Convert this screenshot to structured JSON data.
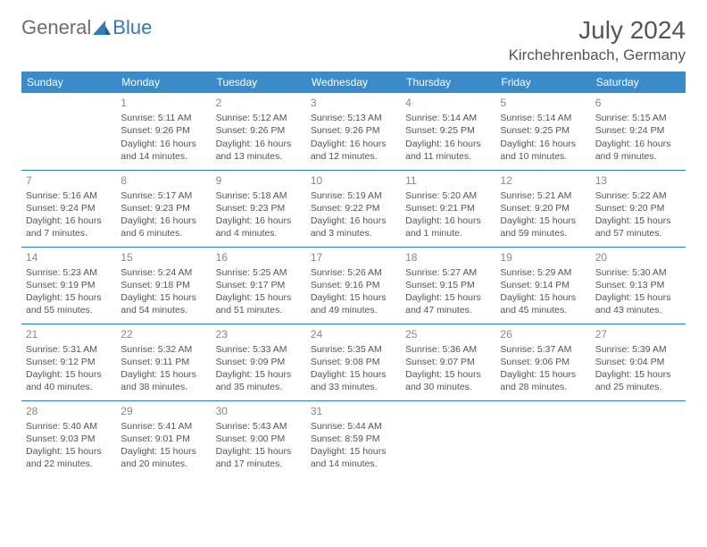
{
  "brand": {
    "part1": "General",
    "part2": "Blue"
  },
  "title": "July 2024",
  "location": "Kirchehrenbach, Germany",
  "colors": {
    "header_bg": "#3b8bc9",
    "header_text": "#ffffff",
    "cell_border": "#2f7ac0",
    "body_text": "#555555",
    "daynum": "#888888",
    "brand_gray": "#6e6e6e",
    "brand_blue": "#2f7ac0",
    "background": "#ffffff"
  },
  "typography": {
    "title_fontsize": 28,
    "location_fontsize": 17,
    "weekday_fontsize": 12,
    "cell_fontsize": 10.5,
    "daynum_fontsize": 12
  },
  "weekdays": [
    "Sunday",
    "Monday",
    "Tuesday",
    "Wednesday",
    "Thursday",
    "Friday",
    "Saturday"
  ],
  "weeks": [
    [
      null,
      {
        "n": "1",
        "sr": "Sunrise: 5:11 AM",
        "ss": "Sunset: 9:26 PM",
        "dl": "Daylight: 16 hours and 14 minutes."
      },
      {
        "n": "2",
        "sr": "Sunrise: 5:12 AM",
        "ss": "Sunset: 9:26 PM",
        "dl": "Daylight: 16 hours and 13 minutes."
      },
      {
        "n": "3",
        "sr": "Sunrise: 5:13 AM",
        "ss": "Sunset: 9:26 PM",
        "dl": "Daylight: 16 hours and 12 minutes."
      },
      {
        "n": "4",
        "sr": "Sunrise: 5:14 AM",
        "ss": "Sunset: 9:25 PM",
        "dl": "Daylight: 16 hours and 11 minutes."
      },
      {
        "n": "5",
        "sr": "Sunrise: 5:14 AM",
        "ss": "Sunset: 9:25 PM",
        "dl": "Daylight: 16 hours and 10 minutes."
      },
      {
        "n": "6",
        "sr": "Sunrise: 5:15 AM",
        "ss": "Sunset: 9:24 PM",
        "dl": "Daylight: 16 hours and 9 minutes."
      }
    ],
    [
      {
        "n": "7",
        "sr": "Sunrise: 5:16 AM",
        "ss": "Sunset: 9:24 PM",
        "dl": "Daylight: 16 hours and 7 minutes."
      },
      {
        "n": "8",
        "sr": "Sunrise: 5:17 AM",
        "ss": "Sunset: 9:23 PM",
        "dl": "Daylight: 16 hours and 6 minutes."
      },
      {
        "n": "9",
        "sr": "Sunrise: 5:18 AM",
        "ss": "Sunset: 9:23 PM",
        "dl": "Daylight: 16 hours and 4 minutes."
      },
      {
        "n": "10",
        "sr": "Sunrise: 5:19 AM",
        "ss": "Sunset: 9:22 PM",
        "dl": "Daylight: 16 hours and 3 minutes."
      },
      {
        "n": "11",
        "sr": "Sunrise: 5:20 AM",
        "ss": "Sunset: 9:21 PM",
        "dl": "Daylight: 16 hours and 1 minute."
      },
      {
        "n": "12",
        "sr": "Sunrise: 5:21 AM",
        "ss": "Sunset: 9:20 PM",
        "dl": "Daylight: 15 hours and 59 minutes."
      },
      {
        "n": "13",
        "sr": "Sunrise: 5:22 AM",
        "ss": "Sunset: 9:20 PM",
        "dl": "Daylight: 15 hours and 57 minutes."
      }
    ],
    [
      {
        "n": "14",
        "sr": "Sunrise: 5:23 AM",
        "ss": "Sunset: 9:19 PM",
        "dl": "Daylight: 15 hours and 55 minutes."
      },
      {
        "n": "15",
        "sr": "Sunrise: 5:24 AM",
        "ss": "Sunset: 9:18 PM",
        "dl": "Daylight: 15 hours and 54 minutes."
      },
      {
        "n": "16",
        "sr": "Sunrise: 5:25 AM",
        "ss": "Sunset: 9:17 PM",
        "dl": "Daylight: 15 hours and 51 minutes."
      },
      {
        "n": "17",
        "sr": "Sunrise: 5:26 AM",
        "ss": "Sunset: 9:16 PM",
        "dl": "Daylight: 15 hours and 49 minutes."
      },
      {
        "n": "18",
        "sr": "Sunrise: 5:27 AM",
        "ss": "Sunset: 9:15 PM",
        "dl": "Daylight: 15 hours and 47 minutes."
      },
      {
        "n": "19",
        "sr": "Sunrise: 5:29 AM",
        "ss": "Sunset: 9:14 PM",
        "dl": "Daylight: 15 hours and 45 minutes."
      },
      {
        "n": "20",
        "sr": "Sunrise: 5:30 AM",
        "ss": "Sunset: 9:13 PM",
        "dl": "Daylight: 15 hours and 43 minutes."
      }
    ],
    [
      {
        "n": "21",
        "sr": "Sunrise: 5:31 AM",
        "ss": "Sunset: 9:12 PM",
        "dl": "Daylight: 15 hours and 40 minutes."
      },
      {
        "n": "22",
        "sr": "Sunrise: 5:32 AM",
        "ss": "Sunset: 9:11 PM",
        "dl": "Daylight: 15 hours and 38 minutes."
      },
      {
        "n": "23",
        "sr": "Sunrise: 5:33 AM",
        "ss": "Sunset: 9:09 PM",
        "dl": "Daylight: 15 hours and 35 minutes."
      },
      {
        "n": "24",
        "sr": "Sunrise: 5:35 AM",
        "ss": "Sunset: 9:08 PM",
        "dl": "Daylight: 15 hours and 33 minutes."
      },
      {
        "n": "25",
        "sr": "Sunrise: 5:36 AM",
        "ss": "Sunset: 9:07 PM",
        "dl": "Daylight: 15 hours and 30 minutes."
      },
      {
        "n": "26",
        "sr": "Sunrise: 5:37 AM",
        "ss": "Sunset: 9:06 PM",
        "dl": "Daylight: 15 hours and 28 minutes."
      },
      {
        "n": "27",
        "sr": "Sunrise: 5:39 AM",
        "ss": "Sunset: 9:04 PM",
        "dl": "Daylight: 15 hours and 25 minutes."
      }
    ],
    [
      {
        "n": "28",
        "sr": "Sunrise: 5:40 AM",
        "ss": "Sunset: 9:03 PM",
        "dl": "Daylight: 15 hours and 22 minutes."
      },
      {
        "n": "29",
        "sr": "Sunrise: 5:41 AM",
        "ss": "Sunset: 9:01 PM",
        "dl": "Daylight: 15 hours and 20 minutes."
      },
      {
        "n": "30",
        "sr": "Sunrise: 5:43 AM",
        "ss": "Sunset: 9:00 PM",
        "dl": "Daylight: 15 hours and 17 minutes."
      },
      {
        "n": "31",
        "sr": "Sunrise: 5:44 AM",
        "ss": "Sunset: 8:59 PM",
        "dl": "Daylight: 15 hours and 14 minutes."
      },
      null,
      null,
      null
    ]
  ]
}
